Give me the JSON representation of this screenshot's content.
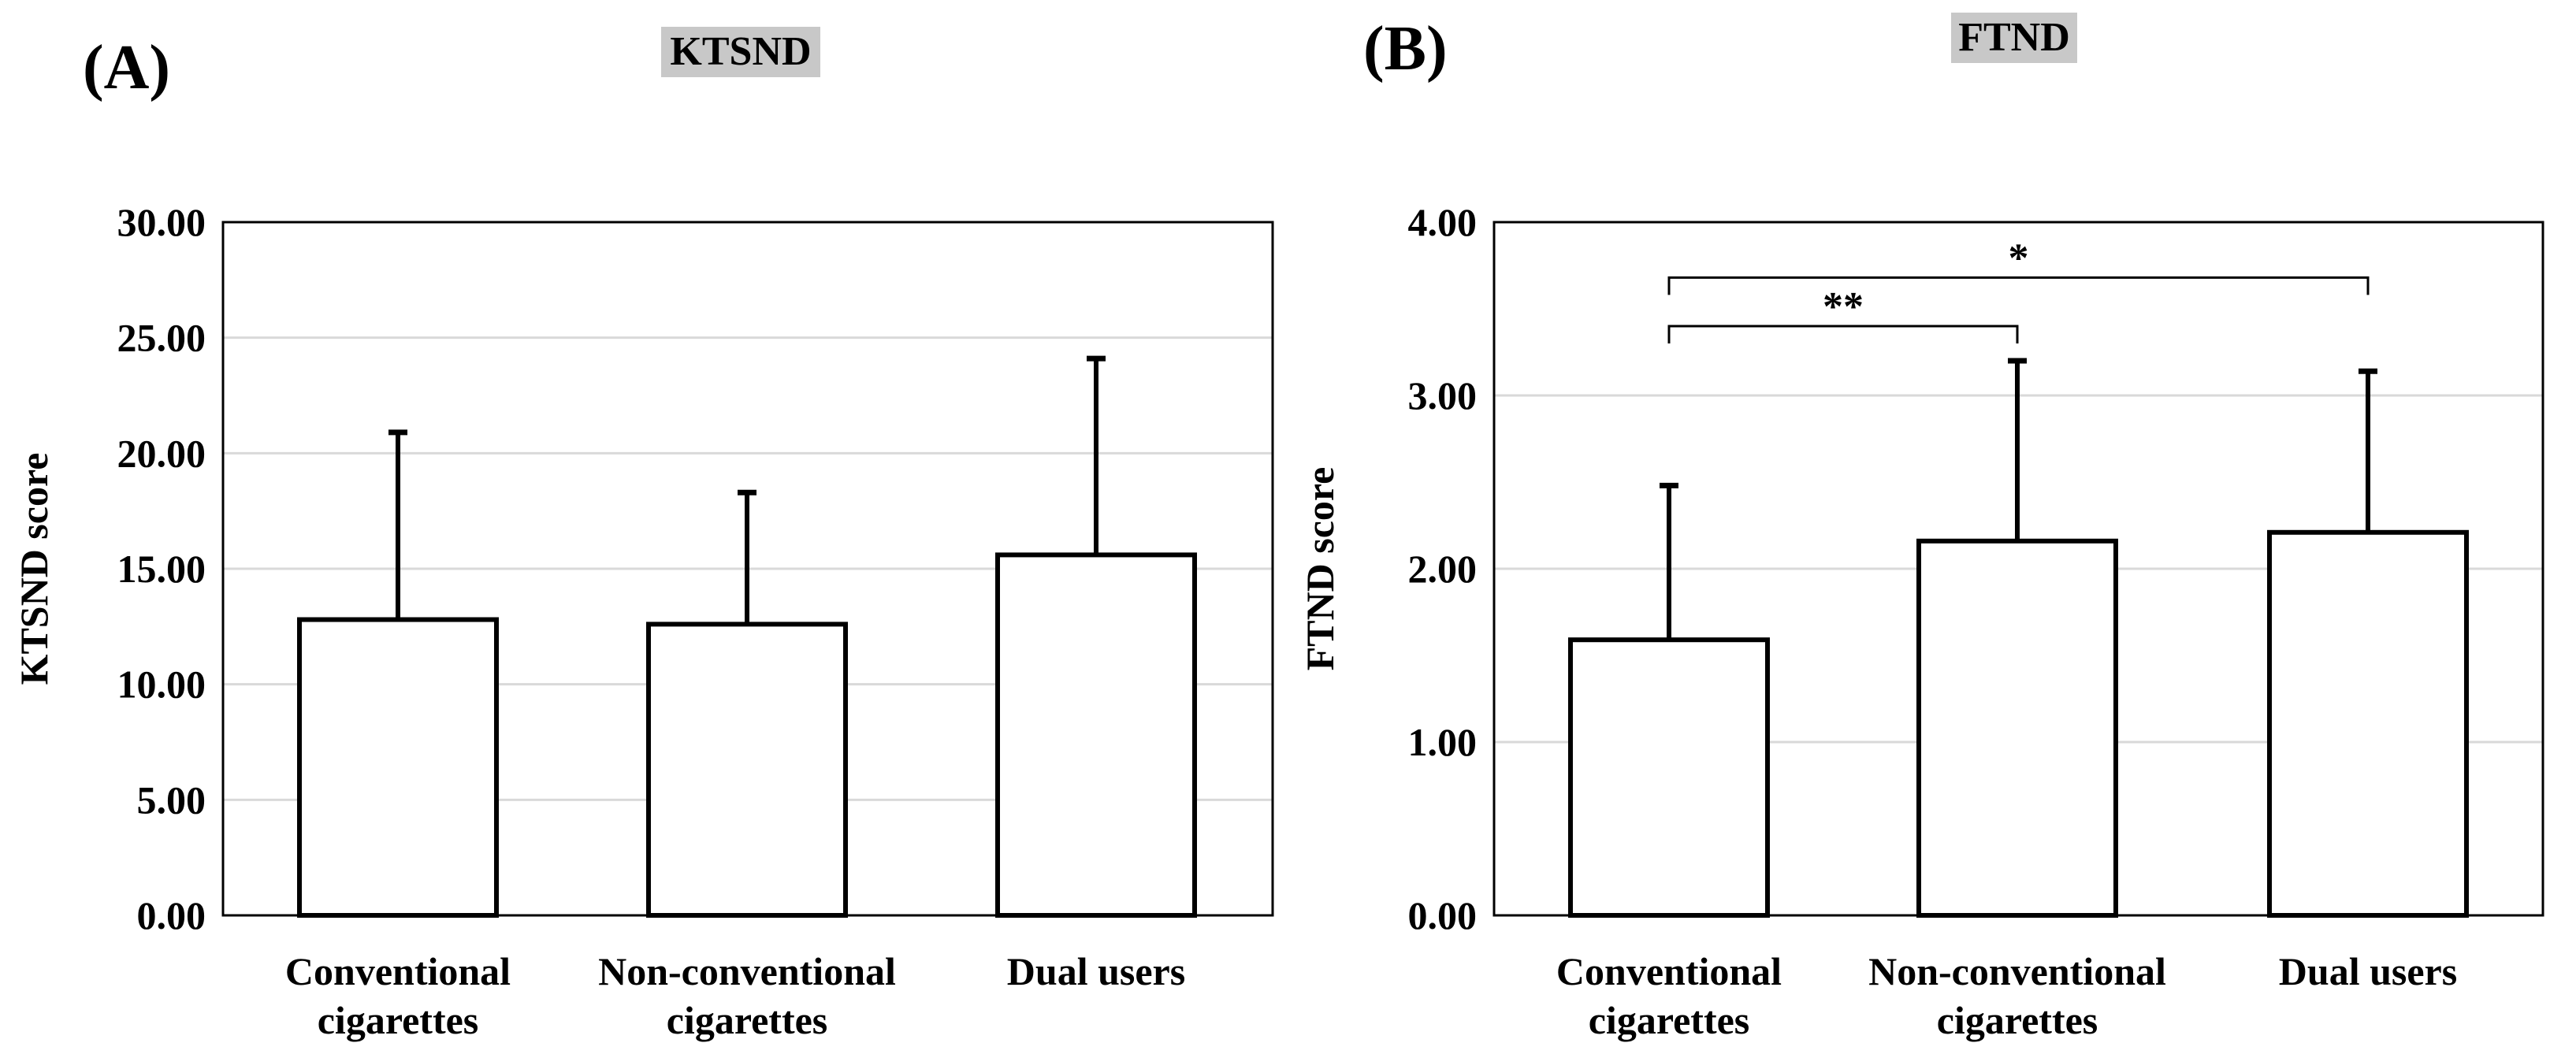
{
  "colors": {
    "title_bg": "#c8c8c8",
    "grid": "#d9d9d9",
    "bar_fill": "#ffffff",
    "ink": "#000000"
  },
  "chart_data": [
    {
      "type": "bar",
      "panel_label": "(A)",
      "title": "KTSND",
      "ylabel": "KTSND score",
      "xlabel": "",
      "ylim": [
        0,
        30
      ],
      "yticks": [
        0,
        5,
        10,
        15,
        20,
        25,
        30
      ],
      "ytick_labels": [
        "0.00",
        "5.00",
        "10.00",
        "15.00",
        "20.00",
        "25.00",
        "30.00"
      ],
      "categories": [
        [
          "Conventional",
          "cigarettes"
        ],
        [
          "Non-conventional",
          "cigarettes"
        ],
        [
          "Dual users"
        ]
      ],
      "values": [
        12.8,
        12.6,
        15.6
      ],
      "error_upper": [
        20.9,
        18.3,
        24.1
      ],
      "grid": true,
      "significance": []
    },
    {
      "type": "bar",
      "panel_label": "(B)",
      "title": "FTND",
      "ylabel": "FTND score",
      "xlabel": "",
      "ylim": [
        0,
        4
      ],
      "yticks": [
        0,
        1,
        2,
        3,
        4
      ],
      "ytick_labels": [
        "0.00",
        "1.00",
        "2.00",
        "3.00",
        "4.00"
      ],
      "categories": [
        [
          "Conventional",
          "cigarettes"
        ],
        [
          "Non-conventional",
          "cigarettes"
        ],
        [
          "Dual users"
        ]
      ],
      "values": [
        1.59,
        2.16,
        2.21
      ],
      "error_upper": [
        2.48,
        3.2,
        3.14
      ],
      "grid": true,
      "significance": [
        {
          "from": 0,
          "to": 2,
          "label": "*",
          "bracket_value": 3.68
        },
        {
          "from": 0,
          "to": 1,
          "label": "**",
          "bracket_value": 3.4
        }
      ]
    }
  ]
}
